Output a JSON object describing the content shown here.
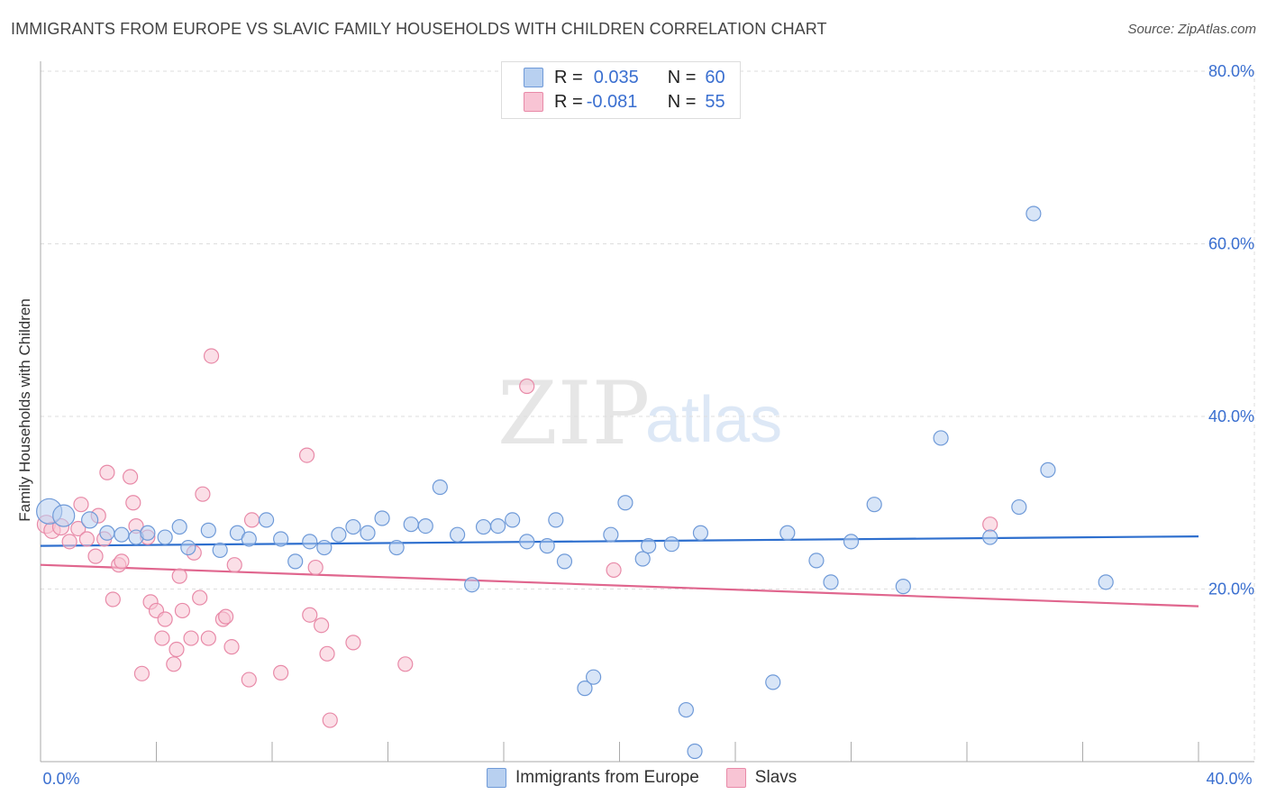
{
  "title": "IMMIGRANTS FROM EUROPE VS SLAVIC FAMILY HOUSEHOLDS WITH CHILDREN CORRELATION CHART",
  "source": "Source: ZipAtlas.com",
  "watermark": {
    "zip": "ZIP",
    "atlas": "atlas"
  },
  "legend": {
    "r_label": "R =",
    "n_label": "N =",
    "series1": {
      "r": "0.035",
      "n": "60"
    },
    "series2": {
      "r": "-0.081",
      "n": "55"
    }
  },
  "colors": {
    "blue_fill": "#b8d0f0",
    "blue_stroke": "#6f9ad8",
    "blue_line": "#2e6fce",
    "pink_fill": "#f8c4d4",
    "pink_stroke": "#e88aa8",
    "pink_line": "#e0668e",
    "axis_text": "#3a6fd0"
  },
  "chart_data": {
    "type": "scatter",
    "title": "IMMIGRANTS FROM EUROPE VS SLAVIC FAMILY HOUSEHOLDS WITH CHILDREN CORRELATION CHART",
    "xlabel": "",
    "ylabel": "Family Households with Children",
    "xlim": [
      0,
      40
    ],
    "ylim": [
      0,
      80
    ],
    "x_tick_labels": [
      "0.0%",
      "40.0%"
    ],
    "y_ticks": [
      20,
      40,
      60,
      80
    ],
    "y_tick_labels": [
      "20.0%",
      "40.0%",
      "60.0%",
      "80.0%"
    ],
    "series": [
      {
        "name": "Immigrants from Europe",
        "color": "blue",
        "trend": [
          [
            0,
            25.0
          ],
          [
            40,
            26.1
          ]
        ],
        "points": [
          [
            0.3,
            29.0,
            14
          ],
          [
            0.8,
            28.5,
            12
          ],
          [
            1.7,
            28.0,
            9
          ],
          [
            2.3,
            26.5,
            8
          ],
          [
            2.8,
            26.3,
            8
          ],
          [
            3.3,
            26.0,
            8
          ],
          [
            3.7,
            26.5,
            8
          ],
          [
            4.3,
            26.0,
            8
          ],
          [
            4.8,
            27.2,
            8
          ],
          [
            5.1,
            24.8,
            8
          ],
          [
            5.8,
            26.8,
            8
          ],
          [
            6.2,
            24.5,
            8
          ],
          [
            6.8,
            26.5,
            8
          ],
          [
            7.2,
            25.8,
            8
          ],
          [
            7.8,
            28.0,
            8
          ],
          [
            8.3,
            25.8,
            8
          ],
          [
            8.8,
            23.2,
            8
          ],
          [
            9.3,
            25.5,
            8
          ],
          [
            9.8,
            24.8,
            8
          ],
          [
            10.3,
            26.3,
            8
          ],
          [
            10.8,
            27.2,
            8
          ],
          [
            11.3,
            26.5,
            8
          ],
          [
            11.8,
            28.2,
            8
          ],
          [
            12.3,
            24.8,
            8
          ],
          [
            12.8,
            27.5,
            8
          ],
          [
            13.3,
            27.3,
            8
          ],
          [
            13.8,
            31.8,
            8
          ],
          [
            14.4,
            26.3,
            8
          ],
          [
            14.9,
            20.5,
            8
          ],
          [
            15.3,
            27.2,
            8
          ],
          [
            15.8,
            27.3,
            8
          ],
          [
            16.3,
            28.0,
            8
          ],
          [
            16.8,
            25.5,
            8
          ],
          [
            17.5,
            25.0,
            8
          ],
          [
            17.8,
            28.0,
            8
          ],
          [
            18.1,
            23.2,
            8
          ],
          [
            18.8,
            8.5,
            8
          ],
          [
            19.1,
            9.8,
            8
          ],
          [
            19.7,
            26.3,
            8
          ],
          [
            20.2,
            30.0,
            8
          ],
          [
            20.8,
            23.5,
            8
          ],
          [
            21.0,
            25.0,
            8
          ],
          [
            21.8,
            25.2,
            8
          ],
          [
            22.3,
            6.0,
            8
          ],
          [
            22.8,
            26.5,
            8
          ],
          [
            22.6,
            1.2,
            8
          ],
          [
            25.3,
            9.2,
            8
          ],
          [
            25.8,
            26.5,
            8
          ],
          [
            26.8,
            23.3,
            8
          ],
          [
            27.3,
            20.8,
            8
          ],
          [
            28.0,
            25.5,
            8
          ],
          [
            28.8,
            29.8,
            8
          ],
          [
            29.8,
            20.3,
            8
          ],
          [
            31.1,
            37.5,
            8
          ],
          [
            32.8,
            26.0,
            8
          ],
          [
            33.8,
            29.5,
            8
          ],
          [
            34.3,
            63.5,
            8
          ],
          [
            34.8,
            33.8,
            8
          ],
          [
            36.8,
            20.8,
            8
          ]
        ]
      },
      {
        "name": "Slavs",
        "color": "pink",
        "trend": [
          [
            0,
            22.8
          ],
          [
            40,
            18.0
          ]
        ],
        "points": [
          [
            0.2,
            27.5,
            10
          ],
          [
            0.4,
            26.8,
            9
          ],
          [
            0.7,
            27.2,
            9
          ],
          [
            1.0,
            25.5,
            8
          ],
          [
            1.3,
            27.0,
            8
          ],
          [
            1.4,
            29.8,
            8
          ],
          [
            1.6,
            25.8,
            8
          ],
          [
            1.9,
            23.8,
            8
          ],
          [
            2.0,
            28.5,
            8
          ],
          [
            2.2,
            25.8,
            8
          ],
          [
            2.3,
            33.5,
            8
          ],
          [
            2.5,
            18.8,
            8
          ],
          [
            2.7,
            22.8,
            8
          ],
          [
            2.8,
            23.2,
            8
          ],
          [
            3.1,
            33.0,
            8
          ],
          [
            3.2,
            30.0,
            8
          ],
          [
            3.3,
            27.3,
            8
          ],
          [
            3.5,
            10.2,
            8
          ],
          [
            3.7,
            26.0,
            8
          ],
          [
            3.8,
            18.5,
            8
          ],
          [
            4.0,
            17.5,
            8
          ],
          [
            4.2,
            14.3,
            8
          ],
          [
            4.3,
            16.5,
            8
          ],
          [
            4.6,
            11.3,
            8
          ],
          [
            4.7,
            13.0,
            8
          ],
          [
            4.8,
            21.5,
            8
          ],
          [
            4.9,
            17.5,
            8
          ],
          [
            5.2,
            14.3,
            8
          ],
          [
            5.3,
            24.2,
            8
          ],
          [
            5.5,
            19.0,
            8
          ],
          [
            5.6,
            31.0,
            8
          ],
          [
            5.8,
            14.3,
            8
          ],
          [
            5.9,
            47.0,
            8
          ],
          [
            6.3,
            16.5,
            8
          ],
          [
            6.4,
            16.8,
            8
          ],
          [
            6.6,
            13.3,
            8
          ],
          [
            6.7,
            22.8,
            8
          ],
          [
            7.2,
            9.5,
            8
          ],
          [
            7.3,
            28.0,
            8
          ],
          [
            8.3,
            10.3,
            8
          ],
          [
            9.2,
            35.5,
            8
          ],
          [
            9.3,
            17.0,
            8
          ],
          [
            9.5,
            22.5,
            8
          ],
          [
            9.7,
            15.8,
            8
          ],
          [
            9.9,
            12.5,
            8
          ],
          [
            10.0,
            4.8,
            8
          ],
          [
            10.8,
            13.8,
            8
          ],
          [
            12.6,
            11.3,
            8
          ],
          [
            16.8,
            43.5,
            8
          ],
          [
            19.8,
            22.2,
            8
          ],
          [
            32.8,
            27.5,
            8
          ]
        ]
      }
    ]
  }
}
